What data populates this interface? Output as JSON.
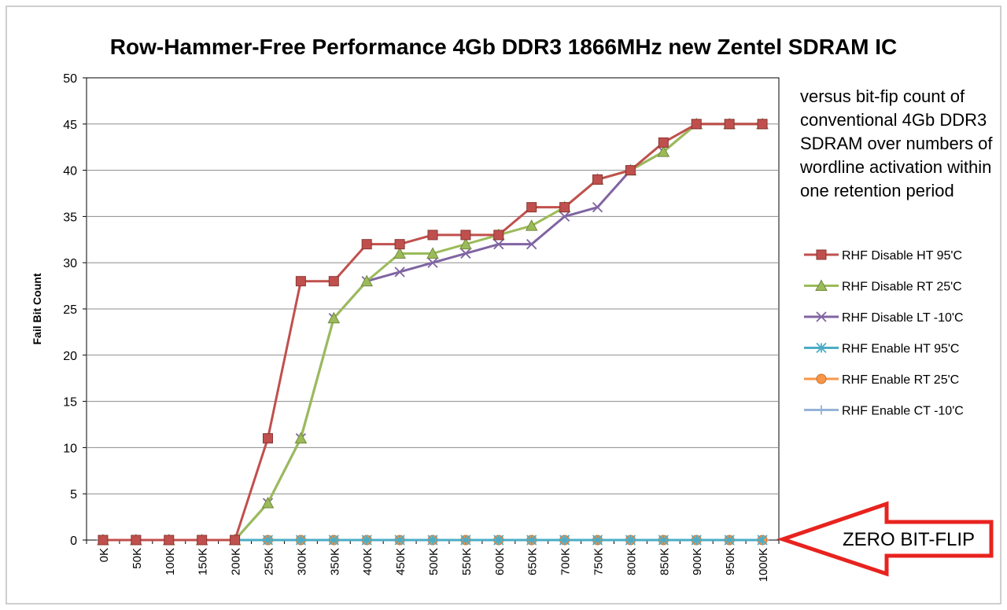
{
  "chart_data": {
    "type": "line",
    "title": "Row-Hammer-Free Performance 4Gb DDR3 1866MHz new Zentel SDRAM IC",
    "annotation": "versus bit-fip count of conventional 4Gb DDR3 SDRAM over numbers of wordline activation within one retention period",
    "callout": "ZERO BIT-FLIP",
    "xlabel": "",
    "ylabel": "Fail Bit Count",
    "ylim": [
      0,
      50
    ],
    "yticks": [
      "0",
      "5",
      "10",
      "15",
      "20",
      "25",
      "30",
      "35",
      "40",
      "45",
      "50"
    ],
    "categories": [
      "0K",
      "50K",
      "100K",
      "150K",
      "200K",
      "250K",
      "300K",
      "350K",
      "400K",
      "450K",
      "500K",
      "550K",
      "600K",
      "650K",
      "700K",
      "750K",
      "800K",
      "850K",
      "900K",
      "950K",
      "1000K"
    ],
    "grid": true,
    "legend_position": "right",
    "series": [
      {
        "name": "RHF Disable HT 95'C",
        "color": "#C0504D",
        "marker": "square",
        "values": [
          0,
          0,
          0,
          0,
          0,
          11,
          28,
          28,
          32,
          32,
          33,
          33,
          33,
          36,
          36,
          39,
          40,
          43,
          45,
          45,
          45
        ]
      },
      {
        "name": "RHF Disable RT 25'C",
        "color": "#9BBB59",
        "marker": "triangle",
        "values": [
          0,
          0,
          0,
          0,
          0,
          4,
          11,
          24,
          28,
          31,
          31,
          32,
          33,
          34,
          36,
          39,
          40,
          42,
          45,
          45,
          45
        ]
      },
      {
        "name": "RHF Disable LT -10'C",
        "color": "#8064A2",
        "marker": "x",
        "values": [
          0,
          0,
          0,
          0,
          0,
          4,
          11,
          24,
          28,
          29,
          30,
          31,
          32,
          32,
          35,
          36,
          40,
          42,
          45,
          45,
          45
        ]
      },
      {
        "name": "RHF Enable HT 95'C",
        "color": "#4BACC6",
        "marker": "star",
        "values": [
          0,
          0,
          0,
          0,
          0,
          0,
          0,
          0,
          0,
          0,
          0,
          0,
          0,
          0,
          0,
          0,
          0,
          0,
          0,
          0,
          0
        ]
      },
      {
        "name": "RHF Enable RT 25'C",
        "color": "#F79646",
        "marker": "circle",
        "values": [
          0,
          0,
          0,
          0,
          0,
          0,
          0,
          0,
          0,
          0,
          0,
          0,
          0,
          0,
          0,
          0,
          0,
          0,
          0,
          0,
          0
        ]
      },
      {
        "name": "RHF Enable CT -10'C",
        "color": "#95B3D7",
        "marker": "plus",
        "values": [
          0,
          0,
          0,
          0,
          0,
          0,
          0,
          0,
          0,
          0,
          0,
          0,
          0,
          0,
          0,
          0,
          0,
          0,
          0,
          0,
          0
        ]
      }
    ]
  }
}
